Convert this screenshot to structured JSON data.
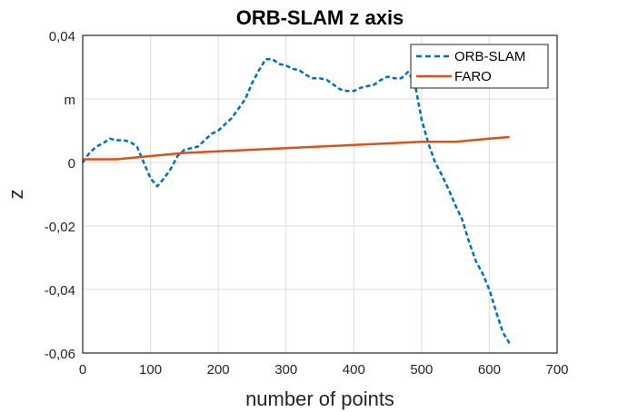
{
  "chart_data": {
    "type": "line",
    "title": "ORB-SLAM z axis",
    "xlabel": "number of points",
    "ylabel": "z",
    "xlim": [
      0,
      700
    ],
    "ylim": [
      -0.06,
      0.04
    ],
    "xticks": [
      0,
      100,
      200,
      300,
      400,
      500,
      600,
      700
    ],
    "xtick_labels": [
      "0",
      "100",
      "200",
      "300",
      "400",
      "500",
      "600",
      "700"
    ],
    "yticks": [
      0.04,
      0.02,
      0,
      -0.02,
      -0.04,
      -0.06
    ],
    "ytick_labels": [
      "0,04",
      "m",
      "0",
      "-0,02",
      "-0,04",
      "-0,06"
    ],
    "grid": true,
    "legend": "top-right",
    "series": [
      {
        "name": "ORB-SLAM",
        "color": "#0072BD",
        "style": "dashed",
        "x": [
          0,
          10,
          20,
          30,
          40,
          50,
          60,
          70,
          80,
          90,
          100,
          110,
          120,
          130,
          140,
          150,
          160,
          170,
          180,
          190,
          200,
          210,
          220,
          230,
          240,
          250,
          260,
          270,
          280,
          290,
          300,
          310,
          320,
          330,
          340,
          350,
          360,
          370,
          380,
          390,
          400,
          410,
          420,
          430,
          440,
          450,
          460,
          470,
          480,
          490,
          500,
          510,
          520,
          530,
          540,
          550,
          560,
          570,
          580,
          590,
          600,
          610,
          620,
          630
        ],
        "y": [
          0.0,
          0.003,
          0.005,
          0.006,
          0.0075,
          0.007,
          0.007,
          0.0065,
          0.005,
          0.0,
          -0.005,
          -0.0075,
          -0.005,
          -0.002,
          0.002,
          0.004,
          0.0045,
          0.005,
          0.007,
          0.009,
          0.01,
          0.012,
          0.014,
          0.017,
          0.02,
          0.025,
          0.029,
          0.0325,
          0.0325,
          0.031,
          0.0305,
          0.0295,
          0.029,
          0.0275,
          0.0265,
          0.0265,
          0.026,
          0.0245,
          0.023,
          0.0225,
          0.0225,
          0.0235,
          0.024,
          0.0245,
          0.026,
          0.027,
          0.0265,
          0.0265,
          0.0285,
          0.025,
          0.0135,
          0.006,
          0.0,
          -0.004,
          -0.0085,
          -0.0135,
          -0.018,
          -0.025,
          -0.031,
          -0.035,
          -0.04,
          -0.047,
          -0.0535,
          -0.057
        ]
      },
      {
        "name": "FARO",
        "color": "#D95319",
        "style": "solid",
        "x": [
          0,
          50,
          100,
          150,
          200,
          250,
          300,
          350,
          400,
          450,
          500,
          550,
          600,
          630
        ],
        "y": [
          0.001,
          0.001,
          0.002,
          0.003,
          0.0035,
          0.004,
          0.0045,
          0.005,
          0.0055,
          0.006,
          0.0065,
          0.0065,
          0.0075,
          0.008
        ]
      }
    ]
  }
}
